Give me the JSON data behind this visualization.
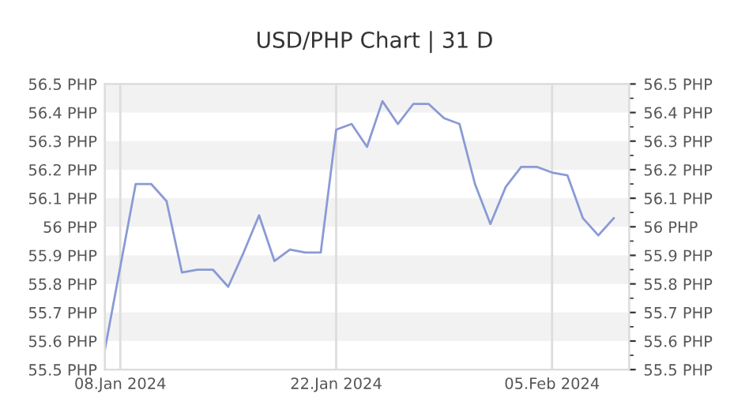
{
  "chart_data": {
    "type": "line",
    "title": "USD/PHP Chart | 31 D",
    "x": [
      "2024-01-07",
      "2024-01-09",
      "2024-01-10",
      "2024-01-11",
      "2024-01-12",
      "2024-01-13",
      "2024-01-14",
      "2024-01-15",
      "2024-01-16",
      "2024-01-17",
      "2024-01-18",
      "2024-01-19",
      "2024-01-20",
      "2024-01-21",
      "2024-01-22",
      "2024-01-23",
      "2024-01-24",
      "2024-01-25",
      "2024-01-26",
      "2024-01-27",
      "2024-01-28",
      "2024-01-29",
      "2024-01-30",
      "2024-01-31",
      "2024-02-01",
      "2024-02-02",
      "2024-02-03",
      "2024-02-04",
      "2024-02-05",
      "2024-02-06",
      "2024-02-07",
      "2024-02-08",
      "2024-02-09"
    ],
    "series": [
      {
        "color": "#8a9ad6",
        "values": [
          55.57,
          56.15,
          56.15,
          56.09,
          55.84,
          55.85,
          55.85,
          55.79,
          55.91,
          56.04,
          55.88,
          55.92,
          55.91,
          55.91,
          56.34,
          56.36,
          56.28,
          56.44,
          56.36,
          56.43,
          56.43,
          56.38,
          56.36,
          56.15,
          56.01,
          56.14,
          56.21,
          56.21,
          56.19,
          56.18,
          56.03,
          55.97,
          56.03
        ]
      }
    ],
    "xlim": [
      "2024-01-07",
      "2024-02-10"
    ],
    "xticks": [
      {
        "value": "2024-01-08",
        "label": "08.Jan 2024"
      },
      {
        "value": "2024-01-22",
        "label": "22.Jan 2024"
      },
      {
        "value": "2024-02-05",
        "label": "05.Feb 2024"
      }
    ],
    "ylim": [
      55.5,
      56.5
    ],
    "yticks": [
      {
        "value": 55.5,
        "label": "55.5 PHP"
      },
      {
        "value": 55.6,
        "label": "55.6 PHP"
      },
      {
        "value": 55.7,
        "label": "55.7 PHP"
      },
      {
        "value": 55.8,
        "label": "55.8 PHP"
      },
      {
        "value": 55.9,
        "label": "55.9 PHP"
      },
      {
        "value": 56,
        "label": "56 PHP"
      },
      {
        "value": 56.1,
        "label": "56.1 PHP"
      },
      {
        "value": 56.2,
        "label": "56.2 PHP"
      },
      {
        "value": 56.3,
        "label": "56.3 PHP"
      },
      {
        "value": 56.4,
        "label": "56.4 PHP"
      },
      {
        "value": 56.5,
        "label": "56.5 PHP"
      }
    ],
    "y2lim": [
      55.5,
      56.5
    ],
    "y2ticks": [
      {
        "value": 55.5,
        "label": "55.5 PHP"
      },
      {
        "value": 55.6,
        "label": "55.6 PHP"
      },
      {
        "value": 55.7,
        "label": "55.7 PHP"
      },
      {
        "value": 55.8,
        "label": "55.8 PHP"
      },
      {
        "value": 55.9,
        "label": "55.9 PHP"
      },
      {
        "value": 56,
        "label": "56 PHP"
      },
      {
        "value": 56.1,
        "label": "56.1 PHP"
      },
      {
        "value": 56.2,
        "label": "56.2 PHP"
      },
      {
        "value": 56.3,
        "label": "56.3 PHP"
      },
      {
        "value": 56.4,
        "label": "56.4 PHP"
      },
      {
        "value": 56.5,
        "label": "56.5 PHP"
      }
    ],
    "grid": true,
    "marker": "none",
    "line_style": "solid"
  }
}
